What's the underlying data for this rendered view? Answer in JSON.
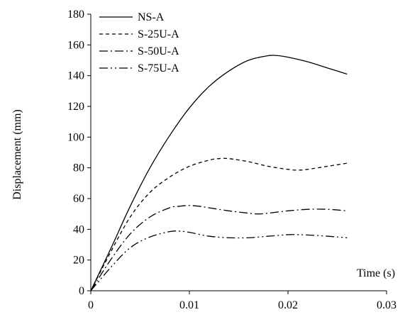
{
  "chart_data": {
    "type": "line",
    "title": "",
    "xlabel": "Time (s)",
    "ylabel": "Displacement (mm)",
    "xlim": [
      0,
      0.03
    ],
    "ylim": [
      0,
      180
    ],
    "xticks": [
      0,
      0.01,
      0.02,
      0.03
    ],
    "xtick_labels": [
      "0",
      "0.01",
      "0.02",
      "0.03"
    ],
    "yticks": [
      0,
      20,
      40,
      60,
      80,
      100,
      120,
      140,
      160,
      180
    ],
    "ytick_labels": [
      "0",
      "20",
      "40",
      "60",
      "80",
      "100",
      "120",
      "140",
      "160",
      "180"
    ],
    "grid": false,
    "legend_position": "top-left",
    "series": [
      {
        "name": "NS-A",
        "dash": "solid",
        "x": [
          0,
          0.002,
          0.004,
          0.006,
          0.008,
          0.01,
          0.012,
          0.014,
          0.016,
          0.018,
          0.019,
          0.02,
          0.022,
          0.024,
          0.026
        ],
        "y": [
          0,
          27,
          55,
          80,
          101,
          119,
          133,
          143,
          150,
          153,
          153,
          152,
          149,
          145,
          141
        ]
      },
      {
        "name": "S-25U-A",
        "dash": "dash",
        "x": [
          0,
          0.002,
          0.004,
          0.006,
          0.008,
          0.01,
          0.012,
          0.013,
          0.014,
          0.016,
          0.018,
          0.02,
          0.021,
          0.022,
          0.024,
          0.026
        ],
        "y": [
          0,
          25,
          48,
          64,
          74,
          81,
          85,
          86,
          86,
          84,
          81,
          79,
          78.5,
          79,
          81,
          83
        ]
      },
      {
        "name": "S-50U-A",
        "dash": "dashdot",
        "x": [
          0,
          0.002,
          0.004,
          0.006,
          0.008,
          0.009,
          0.01,
          0.011,
          0.012,
          0.014,
          0.016,
          0.017,
          0.018,
          0.02,
          0.022,
          0.024,
          0.026
        ],
        "y": [
          0,
          20,
          37,
          48,
          54,
          55,
          55.5,
          55,
          54,
          52,
          50.5,
          50,
          50.5,
          52,
          53,
          53,
          52
        ]
      },
      {
        "name": "S-75U-A",
        "dash": "dashdotdot",
        "x": [
          0,
          0.002,
          0.004,
          0.006,
          0.008,
          0.009,
          0.01,
          0.012,
          0.014,
          0.016,
          0.018,
          0.02,
          0.021,
          0.022,
          0.024,
          0.026
        ],
        "y": [
          0,
          15,
          28,
          35,
          38.5,
          38.8,
          38,
          35.5,
          34.5,
          34.5,
          35.5,
          36.5,
          36.5,
          36.3,
          35.5,
          34.5
        ]
      }
    ]
  }
}
